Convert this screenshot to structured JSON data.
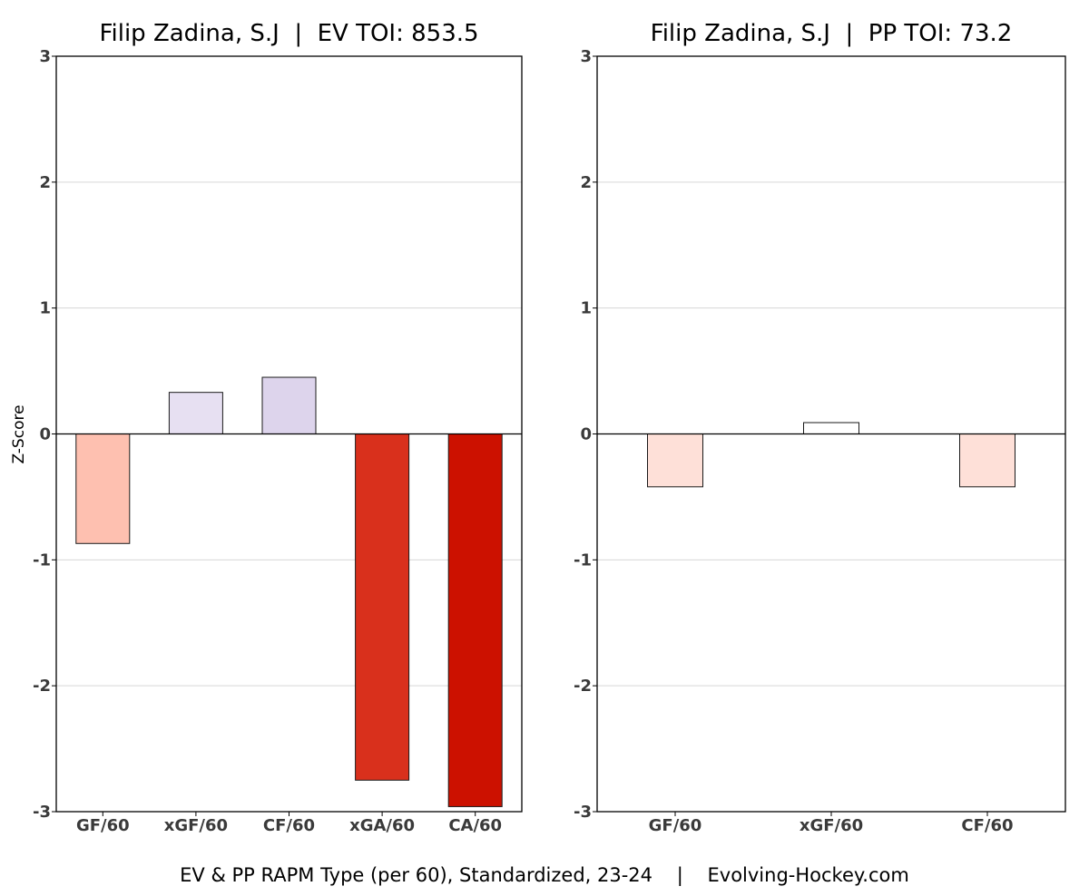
{
  "caption": "EV & PP RAPM Type (per 60), Standardized, 23-24    |    Evolving-Hockey.com",
  "chart_data": [
    {
      "type": "bar",
      "title": "Filip Zadina, S.J  |  EV TOI: 853.5",
      "ylabel": "Z-Score",
      "xlabel": "",
      "ylim": [
        -3,
        3
      ],
      "yticks": [
        3,
        2,
        1,
        0,
        -1,
        -2,
        -3
      ],
      "grid": true,
      "categories": [
        "GF/60",
        "xGF/60",
        "CF/60",
        "xGA/60",
        "CA/60"
      ],
      "values": [
        -0.87,
        0.33,
        0.45,
        -2.75,
        -2.96
      ],
      "colors": [
        "#fec0b0",
        "#e7e0f2",
        "#ddd4ec",
        "#d9301c",
        "#cc1100"
      ]
    },
    {
      "type": "bar",
      "title": "Filip Zadina, S.J  |  PP TOI: 73.2",
      "ylabel": "",
      "xlabel": "",
      "ylim": [
        -3,
        3
      ],
      "yticks": [
        3,
        2,
        1,
        0,
        -1,
        -2,
        -3
      ],
      "grid": true,
      "categories": [
        "GF/60",
        "xGF/60",
        "CF/60"
      ],
      "values": [
        -0.42,
        0.09,
        -0.42
      ],
      "colors": [
        "#fee0d8",
        "#ffffff",
        "#fee0d8"
      ]
    }
  ]
}
